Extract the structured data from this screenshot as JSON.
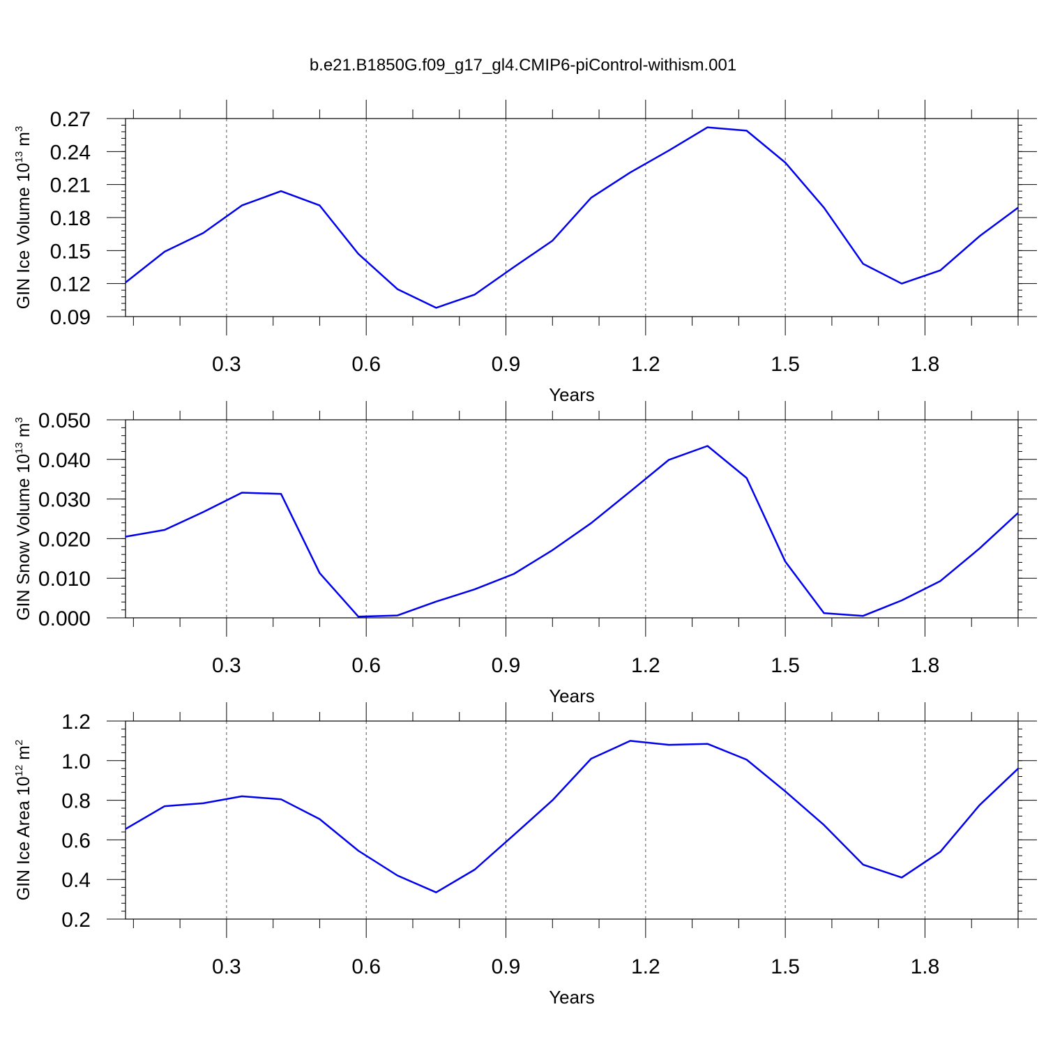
{
  "title": "b.e21.B1850G.f09_g17_gl4.CMIP6-piControl-withism.001",
  "colors": {
    "line": "#0000ee",
    "axis": "#000000",
    "grid": "#555555"
  },
  "chart_data": [
    {
      "type": "line",
      "xlabel": "Years",
      "ylabel": "GIN Ice Volume 10",
      "ylabel_exp": "13",
      "ylabel_unit": " m",
      "ylabel_unit_exp": "3",
      "xlim": [
        0.083,
        2.0
      ],
      "ylim": [
        0.09,
        0.27
      ],
      "xticks": [
        0.3,
        0.6,
        0.9,
        1.2,
        1.5,
        1.8
      ],
      "xtick_labels": [
        "0.3",
        "0.6",
        "0.9",
        "1.2",
        "1.5",
        "1.8"
      ],
      "yticks": [
        0.09,
        0.12,
        0.15,
        0.18,
        0.21,
        0.24,
        0.27
      ],
      "ytick_labels": [
        "0.09",
        "0.12",
        "0.15",
        "0.18",
        "0.21",
        "0.24",
        "0.27"
      ],
      "y_minor_step": 0.006,
      "grid_x": true,
      "series": [
        {
          "x": [
            0.083,
            0.167,
            0.25,
            0.333,
            0.417,
            0.5,
            0.583,
            0.667,
            0.75,
            0.833,
            0.917,
            1.0,
            1.083,
            1.167,
            1.25,
            1.333,
            1.417,
            1.5,
            1.583,
            1.667,
            1.75,
            1.833,
            1.917,
            2.0
          ],
          "y": [
            0.121,
            0.149,
            0.166,
            0.191,
            0.204,
            0.191,
            0.147,
            0.115,
            0.098,
            0.11,
            0.135,
            0.159,
            0.198,
            0.221,
            0.241,
            0.262,
            0.259,
            0.23,
            0.189,
            0.138,
            0.12,
            0.132,
            0.163,
            0.189
          ]
        }
      ]
    },
    {
      "type": "line",
      "xlabel": "Years",
      "ylabel": "GIN Snow Volume 10",
      "ylabel_exp": "13",
      "ylabel_unit": " m",
      "ylabel_unit_exp": "3",
      "xlim": [
        0.083,
        2.0
      ],
      "ylim": [
        0.0,
        0.05
      ],
      "xticks": [
        0.3,
        0.6,
        0.9,
        1.2,
        1.5,
        1.8
      ],
      "xtick_labels": [
        "0.3",
        "0.6",
        "0.9",
        "1.2",
        "1.5",
        "1.8"
      ],
      "yticks": [
        0.0,
        0.01,
        0.02,
        0.03,
        0.04,
        0.05
      ],
      "ytick_labels": [
        "0.000",
        "0.010",
        "0.020",
        "0.030",
        "0.040",
        "0.050"
      ],
      "y_minor_step": 0.002,
      "grid_x": true,
      "series": [
        {
          "x": [
            0.083,
            0.167,
            0.25,
            0.333,
            0.417,
            0.5,
            0.583,
            0.667,
            0.75,
            0.833,
            0.917,
            1.0,
            1.083,
            1.167,
            1.25,
            1.333,
            1.417,
            1.5,
            1.583,
            1.667,
            1.75,
            1.833,
            1.917,
            2.0
          ],
          "y": [
            0.0205,
            0.0222,
            0.0267,
            0.0316,
            0.0313,
            0.0113,
            0.0003,
            0.0006,
            0.0041,
            0.0072,
            0.0111,
            0.0171,
            0.0239,
            0.0319,
            0.0399,
            0.0434,
            0.0353,
            0.0142,
            0.0012,
            0.0005,
            0.0044,
            0.0093,
            0.0175,
            0.0265
          ]
        }
      ]
    },
    {
      "type": "line",
      "xlabel": "Years",
      "ylabel": "GIN Ice Area 10",
      "ylabel_exp": "12",
      "ylabel_unit": " m",
      "ylabel_unit_exp": "2",
      "xlim": [
        0.083,
        2.0
      ],
      "ylim": [
        0.2,
        1.2
      ],
      "xticks": [
        0.3,
        0.6,
        0.9,
        1.2,
        1.5,
        1.8
      ],
      "xtick_labels": [
        "0.3",
        "0.6",
        "0.9",
        "1.2",
        "1.5",
        "1.8"
      ],
      "yticks": [
        0.2,
        0.4,
        0.6,
        0.8,
        1.0,
        1.2
      ],
      "ytick_labels": [
        "0.2",
        "0.4",
        "0.6",
        "0.8",
        "1.0",
        "1.2"
      ],
      "y_minor_step": 0.04,
      "grid_x": true,
      "series": [
        {
          "x": [
            0.083,
            0.167,
            0.25,
            0.333,
            0.417,
            0.5,
            0.583,
            0.667,
            0.75,
            0.833,
            0.917,
            1.0,
            1.083,
            1.167,
            1.25,
            1.333,
            1.417,
            1.5,
            1.583,
            1.667,
            1.75,
            1.833,
            1.917,
            2.0
          ],
          "y": [
            0.655,
            0.77,
            0.785,
            0.82,
            0.805,
            0.705,
            0.545,
            0.42,
            0.335,
            0.45,
            0.625,
            0.8,
            1.01,
            1.1,
            1.08,
            1.085,
            1.005,
            0.845,
            0.675,
            0.475,
            0.41,
            0.54,
            0.775,
            0.96
          ]
        }
      ]
    }
  ]
}
